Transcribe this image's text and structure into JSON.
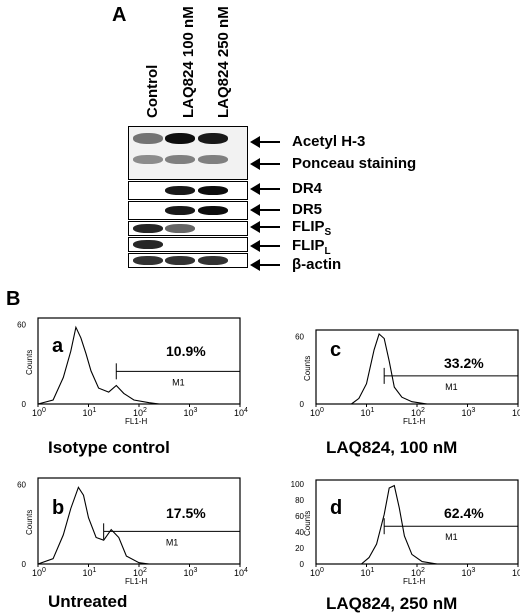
{
  "panel_a": {
    "letter": "A",
    "lanes": [
      "Control",
      "LAQ824 100 nM",
      "LAQ824 250 nM"
    ],
    "blots": [
      {
        "label": "Acetyl H-3",
        "sub": "",
        "bands": [
          0.55,
          0.95,
          0.9
        ]
      },
      {
        "label": "Ponceau staining",
        "sub": "",
        "bands": [
          0.45,
          0.5,
          0.5
        ]
      },
      {
        "label": "DR4",
        "sub": "",
        "bands": [
          0.0,
          0.9,
          0.95
        ]
      },
      {
        "label": "DR5",
        "sub": "",
        "bands": [
          0.0,
          0.9,
          0.95
        ]
      },
      {
        "label": "FLIP",
        "sub": "S",
        "bands": [
          0.85,
          0.6,
          0.0
        ]
      },
      {
        "label": "FLIP",
        "sub": "L",
        "bands": [
          0.85,
          0.0,
          0.0
        ]
      },
      {
        "label": "β-actin",
        "sub": "",
        "bands": [
          0.8,
          0.8,
          0.8
        ]
      }
    ]
  },
  "panel_b": {
    "letter": "B",
    "ylabel": "Counts",
    "xlabel": "FL1-H",
    "xticks": [
      "10",
      "10",
      "10",
      "10",
      "10"
    ],
    "xtick_exps": [
      "0",
      "1",
      "2",
      "3",
      "4"
    ],
    "gate_label": "M1",
    "plots": [
      {
        "letter": "a",
        "percent": "10.9%",
        "caption": "Isotype control",
        "yticks": [
          "0",
          "60"
        ]
      },
      {
        "letter": "c",
        "percent": "33.2%",
        "caption": "LAQ824, 100 nM",
        "yticks": [
          "0",
          "60"
        ]
      },
      {
        "letter": "b",
        "percent": "17.5%",
        "caption": "Untreated",
        "yticks": [
          "0",
          "60"
        ]
      },
      {
        "letter": "d",
        "percent": "62.4%",
        "caption": "LAQ824, 250 nM",
        "yticks": [
          "0",
          "20",
          "40",
          "60",
          "80",
          "100"
        ]
      }
    ]
  }
}
